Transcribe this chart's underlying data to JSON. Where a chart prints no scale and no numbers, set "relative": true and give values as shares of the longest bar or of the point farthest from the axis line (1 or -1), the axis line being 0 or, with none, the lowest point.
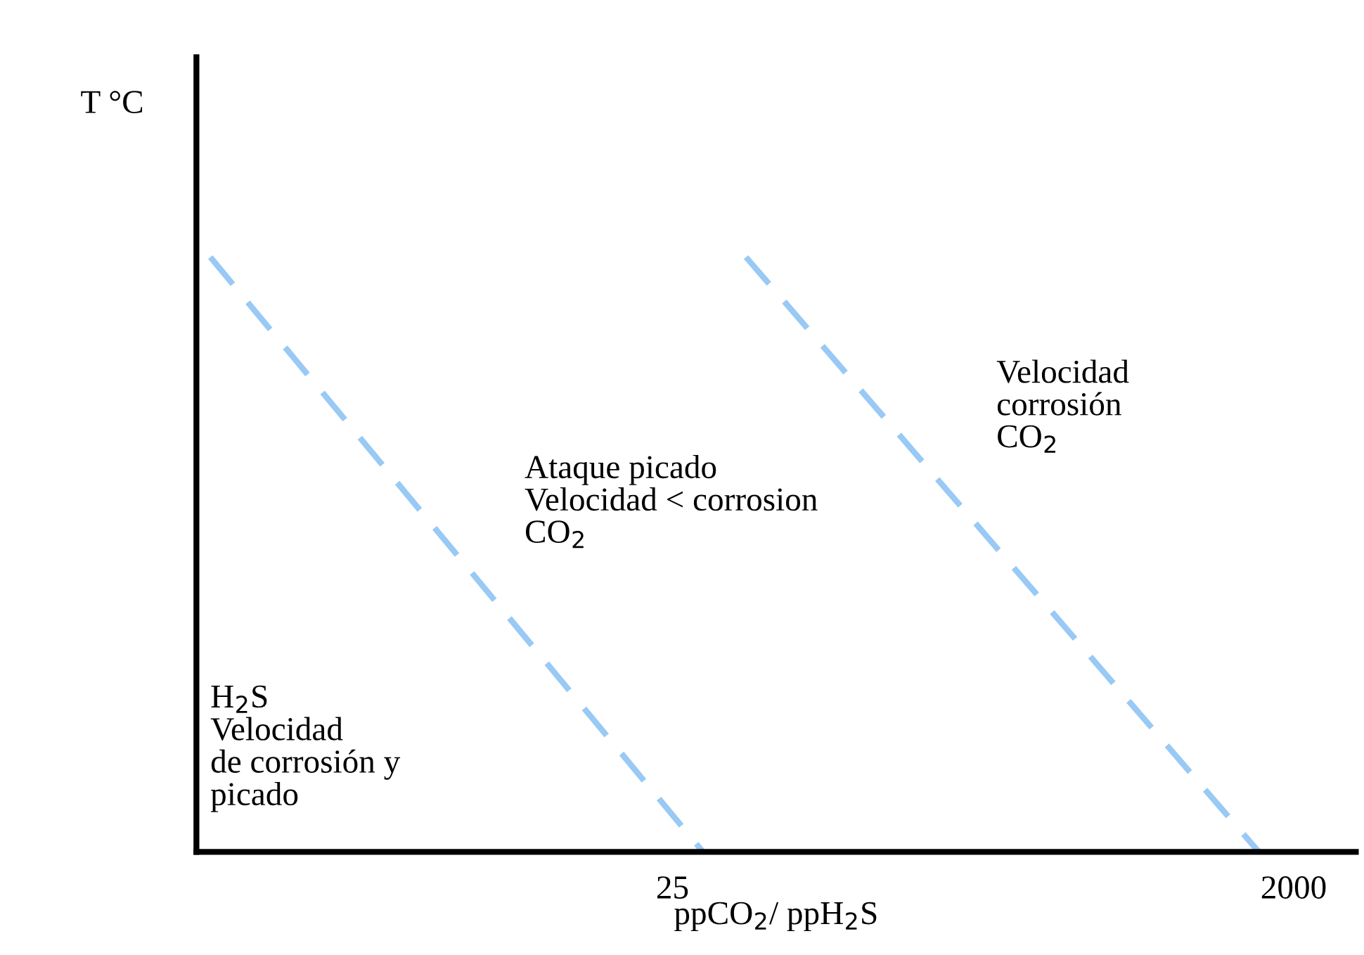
{
  "chart_data": {
    "type": "line",
    "relative": true,
    "log": "x",
    "xlabel": "ppCO$_{2}$/ ppH$_{2}$S",
    "ylabel": "T °C",
    "xlim": [
      0.87,
      3100
    ],
    "xticks": [
      25,
      2000
    ],
    "grid": false,
    "marker": "none",
    "line_style": "dashed",
    "series": [
      {
        "color": "#99c9f5",
        "x": [
          0.96,
          31
        ],
        "values": [
          1,
          0
        ]
      },
      {
        "color": "#99c9f5",
        "x": [
          42,
          1563
        ],
        "values": [
          1,
          0
        ]
      }
    ],
    "annotations": [
      "H$_{2}$S\nVelocidad\nde corrosión y\npicado",
      "Ataque picado\nVelocidad < corrosion\nCO$_{2}$",
      "Velocidad\ncorrosión\nCO$_{2}$"
    ]
  }
}
